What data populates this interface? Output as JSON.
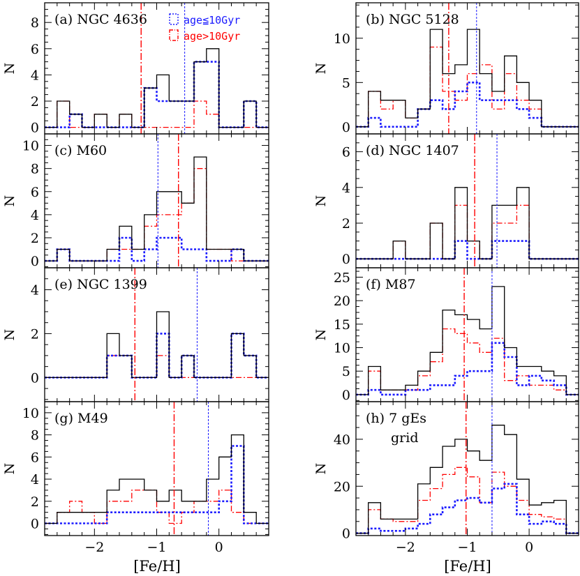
{
  "figure": {
    "x_label": "[Fe/H]",
    "y_label": "N",
    "legend": {
      "position": "top-right of panel (a)",
      "entries": [
        {
          "label": "age≦10Gyr",
          "color": "#1a1aff",
          "style": "dotted"
        },
        {
          "label": "age>10Gyr",
          "color": "#ff0000",
          "style": "dash-dot"
        }
      ]
    },
    "colors": {
      "all": "#000000",
      "young": "#1a1aff",
      "old": "#ff0000"
    }
  },
  "chart_data": [
    {
      "type": "histogram",
      "panel": "a",
      "label": "(a) NGC 4636",
      "bins": [
        -2.8,
        -2.6,
        -2.4,
        -2.2,
        -2.0,
        -1.8,
        -1.6,
        -1.4,
        -1.2,
        -1.0,
        -0.8,
        -0.6,
        -0.4,
        -0.2,
        0.0,
        0.2,
        0.4,
        0.6,
        0.8
      ],
      "xlim": [
        -2.8,
        0.8
      ],
      "ylim": [
        -0.5,
        9.5
      ],
      "yticks": [
        0,
        2,
        4,
        6,
        8
      ],
      "xticks": [
        -2,
        -1,
        0
      ],
      "series": [
        {
          "key": "all",
          "values": [
            0,
            2,
            1,
            0,
            1,
            0,
            1,
            0,
            3,
            4,
            2,
            2,
            5,
            6,
            0,
            0,
            2,
            0
          ]
        },
        {
          "key": "young",
          "values": [
            0,
            0,
            1,
            0,
            0,
            0,
            0,
            0,
            3,
            2,
            2,
            2,
            5,
            5,
            0,
            0,
            2,
            0
          ]
        },
        {
          "key": "old",
          "values": [
            0,
            2,
            0,
            0,
            1,
            0,
            1,
            0,
            0,
            0,
            0,
            0,
            2,
            1,
            0,
            0,
            0,
            0
          ]
        }
      ],
      "vlines": {
        "young": -0.55,
        "old": -1.25
      }
    },
    {
      "type": "histogram",
      "panel": "b",
      "label": "(b) NGC 5128",
      "bins": [
        -2.8,
        -2.6,
        -2.4,
        -2.2,
        -2.0,
        -1.8,
        -1.6,
        -1.4,
        -1.2,
        -1.0,
        -0.8,
        -0.6,
        -0.4,
        -0.2,
        0.0,
        0.2,
        0.4,
        0.6,
        0.8
      ],
      "xlim": [
        -2.8,
        0.8
      ],
      "ylim": [
        -0.8,
        14
      ],
      "yticks": [
        0,
        5,
        10
      ],
      "xticks": [
        -2,
        -1,
        0
      ],
      "series": [
        {
          "key": "all",
          "values": [
            0,
            4,
            3,
            3,
            1,
            2,
            11,
            6,
            7,
            11,
            6,
            4,
            8,
            5,
            3,
            0,
            0,
            0
          ]
        },
        {
          "key": "young",
          "values": [
            0,
            1,
            0,
            0,
            0,
            2,
            3,
            2,
            4,
            5,
            3,
            3,
            3,
            2,
            1,
            0,
            0,
            0
          ]
        },
        {
          "key": "old",
          "values": [
            0,
            4,
            2,
            3,
            1,
            2,
            9,
            4,
            3,
            6,
            7,
            2,
            6,
            3,
            2,
            0,
            0,
            0
          ]
        }
      ],
      "vlines": {
        "young": -0.85,
        "old": -1.3
      }
    },
    {
      "type": "histogram",
      "panel": "c",
      "label": "(c) M60",
      "bins": [
        -2.8,
        -2.6,
        -2.4,
        -2.2,
        -2.0,
        -1.8,
        -1.6,
        -1.4,
        -1.2,
        -1.0,
        -0.8,
        -0.6,
        -0.4,
        -0.2,
        0.0,
        0.2,
        0.4,
        0.6,
        0.8
      ],
      "xlim": [
        -2.8,
        0.8
      ],
      "ylim": [
        -0.6,
        11
      ],
      "yticks": [
        0,
        2,
        4,
        6,
        8,
        10
      ],
      "xticks": [
        -2,
        -1,
        0
      ],
      "series": [
        {
          "key": "all",
          "values": [
            0,
            1,
            0,
            0,
            0,
            1,
            3,
            1,
            4,
            6,
            6,
            5,
            9,
            1,
            1,
            1,
            0,
            0
          ]
        },
        {
          "key": "young",
          "values": [
            0,
            1,
            0,
            0,
            0,
            0,
            2,
            0,
            1,
            2,
            2,
            1,
            1,
            0,
            0,
            1,
            0,
            0
          ]
        },
        {
          "key": "old",
          "values": [
            0,
            1,
            0,
            0,
            0,
            1,
            1,
            1,
            3,
            4,
            4,
            5,
            8,
            1,
            1,
            0,
            0,
            0
          ]
        }
      ],
      "vlines": {
        "young": -0.98,
        "old": -0.65
      }
    },
    {
      "type": "histogram",
      "panel": "d",
      "label": "(d) NGC 1407",
      "bins": [
        -2.8,
        -2.6,
        -2.4,
        -2.2,
        -2.0,
        -1.8,
        -1.6,
        -1.4,
        -1.2,
        -1.0,
        -0.8,
        -0.6,
        -0.4,
        -0.2,
        0.0,
        0.2,
        0.4,
        0.6,
        0.8
      ],
      "xlim": [
        -2.8,
        0.8
      ],
      "ylim": [
        -0.5,
        7
      ],
      "yticks": [
        0,
        2,
        4,
        6
      ],
      "xticks": [
        -2,
        -1,
        0
      ],
      "series": [
        {
          "key": "all",
          "values": [
            0,
            0,
            0,
            1,
            0,
            0,
            2,
            0,
            4,
            1,
            0,
            3,
            3,
            4,
            0,
            0,
            0,
            0
          ]
        },
        {
          "key": "young",
          "values": [
            0,
            0,
            0,
            0,
            0,
            0,
            0,
            0,
            1,
            0,
            0,
            1,
            1,
            1,
            0,
            0,
            0,
            0
          ]
        },
        {
          "key": "old",
          "values": [
            0,
            0,
            0,
            1,
            0,
            0,
            2,
            0,
            3,
            1,
            0,
            2,
            2,
            3,
            0,
            0,
            0,
            0
          ]
        }
      ],
      "vlines": {
        "young": -0.52,
        "old": -0.88
      }
    },
    {
      "type": "histogram",
      "panel": "e",
      "label": "(e) NGC 1399",
      "bins": [
        -2.8,
        -2.6,
        -2.4,
        -2.2,
        -2.0,
        -1.8,
        -1.6,
        -1.4,
        -1.2,
        -1.0,
        -0.8,
        -0.6,
        -0.4,
        -0.2,
        0.0,
        0.2,
        0.4,
        0.6,
        0.8
      ],
      "xlim": [
        -2.8,
        0.8
      ],
      "ylim": [
        -1.1,
        5
      ],
      "yticks": [
        0,
        2,
        4
      ],
      "xticks": [
        -2,
        -1,
        0
      ],
      "series": [
        {
          "key": "all",
          "values": [
            0,
            0,
            0,
            0,
            0,
            2,
            1,
            0,
            0,
            3,
            0,
            1,
            0,
            0,
            0,
            2,
            1,
            0
          ]
        },
        {
          "key": "young",
          "values": [
            0,
            0,
            0,
            0,
            0,
            1,
            1,
            0,
            0,
            2,
            0,
            1,
            0,
            0,
            0,
            2,
            1,
            0
          ]
        },
        {
          "key": "old",
          "values": [
            0,
            0,
            0,
            0,
            0,
            1,
            1,
            0,
            0,
            1,
            0,
            0,
            0,
            0,
            0,
            0,
            0,
            0
          ]
        }
      ],
      "vlines": {
        "young": -0.35,
        "old": -1.35
      }
    },
    {
      "type": "histogram",
      "panel": "f",
      "label": "(f) M87",
      "bins": [
        -2.8,
        -2.6,
        -2.4,
        -2.2,
        -2.0,
        -1.8,
        -1.6,
        -1.4,
        -1.2,
        -1.0,
        -0.8,
        -0.6,
        -0.4,
        -0.2,
        0.0,
        0.2,
        0.4,
        0.6,
        0.8
      ],
      "xlim": [
        -2.8,
        0.8
      ],
      "ylim": [
        -1.5,
        27
      ],
      "yticks": [
        0,
        5,
        10,
        15,
        20,
        25
      ],
      "xticks": [
        -2,
        -1,
        0
      ],
      "series": [
        {
          "key": "all",
          "values": [
            0,
            6,
            1,
            1,
            2,
            5,
            9,
            18,
            17,
            16,
            14,
            23,
            10,
            6,
            6,
            5,
            4,
            0
          ]
        },
        {
          "key": "young",
          "values": [
            0,
            1,
            0,
            0,
            1,
            1,
            2,
            2,
            4,
            5,
            5,
            11,
            8,
            2,
            4,
            3,
            2,
            0
          ]
        },
        {
          "key": "old",
          "values": [
            0,
            5,
            1,
            1,
            1,
            4,
            7,
            14,
            13,
            11,
            9,
            12,
            3,
            4,
            2,
            2,
            1,
            0
          ]
        }
      ],
      "vlines": {
        "young": -0.6,
        "old": -1.05
      }
    },
    {
      "type": "histogram",
      "panel": "g",
      "label": "(g) M49",
      "bins": [
        -2.8,
        -2.6,
        -2.4,
        -2.2,
        -2.0,
        -1.8,
        -1.6,
        -1.4,
        -1.2,
        -1.0,
        -0.8,
        -0.6,
        -0.4,
        -0.2,
        0.0,
        0.2,
        0.4,
        0.6,
        0.8
      ],
      "xlim": [
        -2.8,
        0.8
      ],
      "ylim": [
        -1.1,
        11
      ],
      "yticks": [
        0,
        2,
        4,
        6,
        8,
        10
      ],
      "xticks": [
        -2,
        -1,
        0
      ],
      "series": [
        {
          "key": "all",
          "values": [
            0,
            1,
            1,
            1,
            1,
            3,
            4,
            4,
            3,
            2,
            3,
            2,
            2,
            4,
            6,
            8,
            1,
            0
          ]
        },
        {
          "key": "young",
          "values": [
            0,
            0,
            0,
            0,
            0,
            1,
            1,
            1,
            1,
            1,
            1,
            1,
            1,
            1,
            2,
            7,
            0,
            0
          ]
        },
        {
          "key": "old",
          "values": [
            0,
            1,
            2,
            1,
            0,
            2,
            2,
            3,
            3,
            1,
            0,
            1,
            2,
            2,
            3,
            1,
            0,
            0
          ]
        }
      ],
      "vlines": {
        "young": -0.17,
        "old": -0.72
      }
    },
    {
      "type": "histogram",
      "panel": "h",
      "label": "(h) 7 gEs",
      "sublabel": "grid",
      "bins": [
        -2.8,
        -2.6,
        -2.4,
        -2.2,
        -2.0,
        -1.8,
        -1.6,
        -1.4,
        -1.2,
        -1.0,
        -0.8,
        -0.6,
        -0.4,
        -0.2,
        0.0,
        0.2,
        0.4,
        0.6,
        0.8
      ],
      "xlim": [
        -2.8,
        0.8
      ],
      "ylim": [
        -1,
        56
      ],
      "yticks": [
        0,
        20,
        40
      ],
      "xticks": [
        -2,
        -1,
        0
      ],
      "series": [
        {
          "key": "all",
          "values": [
            0,
            13,
            6,
            6,
            6,
            21,
            28,
            37,
            40,
            35,
            31,
            46,
            42,
            23,
            12,
            13,
            14,
            0
          ]
        },
        {
          "key": "young",
          "values": [
            0,
            2,
            1,
            1,
            2,
            4,
            8,
            11,
            14,
            15,
            13,
            19,
            21,
            8,
            4,
            5,
            4,
            0
          ]
        },
        {
          "key": "old",
          "values": [
            0,
            10,
            6,
            5,
            5,
            14,
            19,
            25,
            28,
            24,
            13,
            26,
            20,
            14,
            8,
            7,
            6,
            0
          ]
        }
      ],
      "vlines": {
        "young": -0.6,
        "old": -1.02
      }
    }
  ]
}
